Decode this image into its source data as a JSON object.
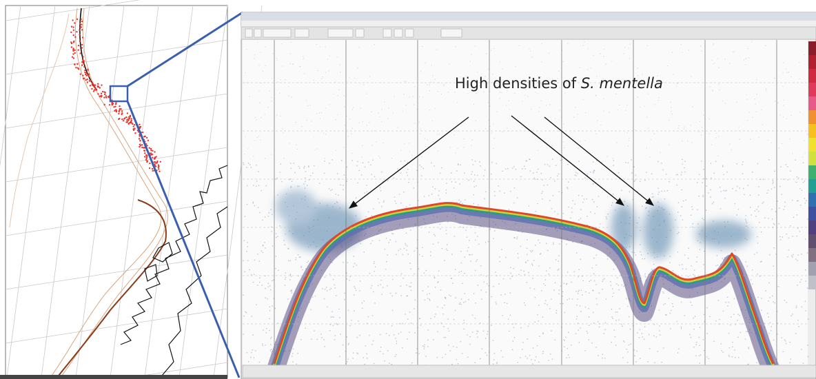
{
  "annotation": {
    "text": "High densities of",
    "species": "S. mentella"
  }
}
